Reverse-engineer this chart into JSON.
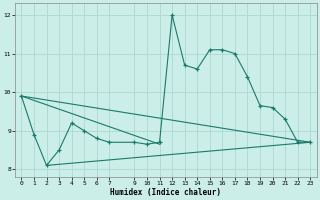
{
  "xlabel": "Humidex (Indice chaleur)",
  "bg_color": "#cceee8",
  "grid_color": "#aad8d0",
  "line_color": "#1a7a6a",
  "xlim": [
    -0.5,
    23.5
  ],
  "ylim": [
    7.8,
    12.3
  ],
  "yticks": [
    8,
    9,
    10,
    11,
    12
  ],
  "xticks": [
    0,
    1,
    2,
    3,
    4,
    5,
    6,
    7,
    9,
    10,
    11,
    12,
    13,
    14,
    15,
    16,
    17,
    18,
    19,
    20,
    21,
    22,
    23
  ],
  "series": [
    [
      0,
      9.9
    ],
    [
      1,
      8.9
    ],
    [
      2,
      8.1
    ],
    [
      3,
      8.5
    ],
    [
      4,
      9.2
    ],
    [
      5,
      9.0
    ],
    [
      6,
      8.8
    ],
    [
      7,
      8.7
    ],
    [
      9,
      8.7
    ],
    [
      10,
      8.65
    ],
    [
      11,
      8.7
    ],
    [
      12,
      12.0
    ],
    [
      13,
      10.7
    ],
    [
      14,
      10.6
    ],
    [
      15,
      11.1
    ],
    [
      16,
      11.1
    ],
    [
      17,
      11.0
    ],
    [
      18,
      10.4
    ],
    [
      19,
      9.65
    ],
    [
      20,
      9.6
    ],
    [
      21,
      9.3
    ],
    [
      22,
      8.7
    ],
    [
      23,
      8.7
    ]
  ],
  "line2": [
    [
      0,
      9.9
    ],
    [
      23,
      8.7
    ]
  ],
  "line3": [
    [
      2,
      8.1
    ],
    [
      23,
      8.7
    ]
  ],
  "line4": [
    [
      0,
      9.9
    ],
    [
      11,
      8.65
    ]
  ]
}
